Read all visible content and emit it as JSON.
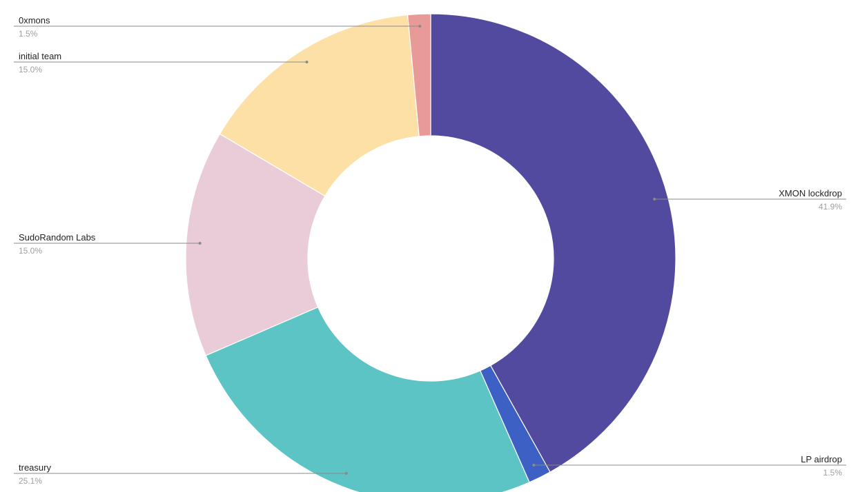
{
  "chart_data": {
    "type": "pie",
    "donut": true,
    "slices": [
      {
        "label": "XMON lockdrop",
        "value": 41.9,
        "display": "41.9%",
        "color": "#524a9e"
      },
      {
        "label": "LP airdrop",
        "value": 1.5,
        "display": "1.5%",
        "color": "#3c60c4"
      },
      {
        "label": "treasury",
        "value": 25.1,
        "display": "25.1%",
        "color": "#5cc4c4"
      },
      {
        "label": "SudoRandom Labs",
        "value": 15.0,
        "display": "15.0%",
        "color": "#eacbd8"
      },
      {
        "label": "initial team",
        "value": 15.0,
        "display": "15.0%",
        "color": "#fce0a6"
      },
      {
        "label": "0xmons",
        "value": 1.5,
        "display": "1.5%",
        "color": "#e89a98"
      }
    ],
    "start_angle": "top",
    "direction": "clockwise",
    "legend": "none",
    "label_style": "callout lines with name and percentage"
  }
}
